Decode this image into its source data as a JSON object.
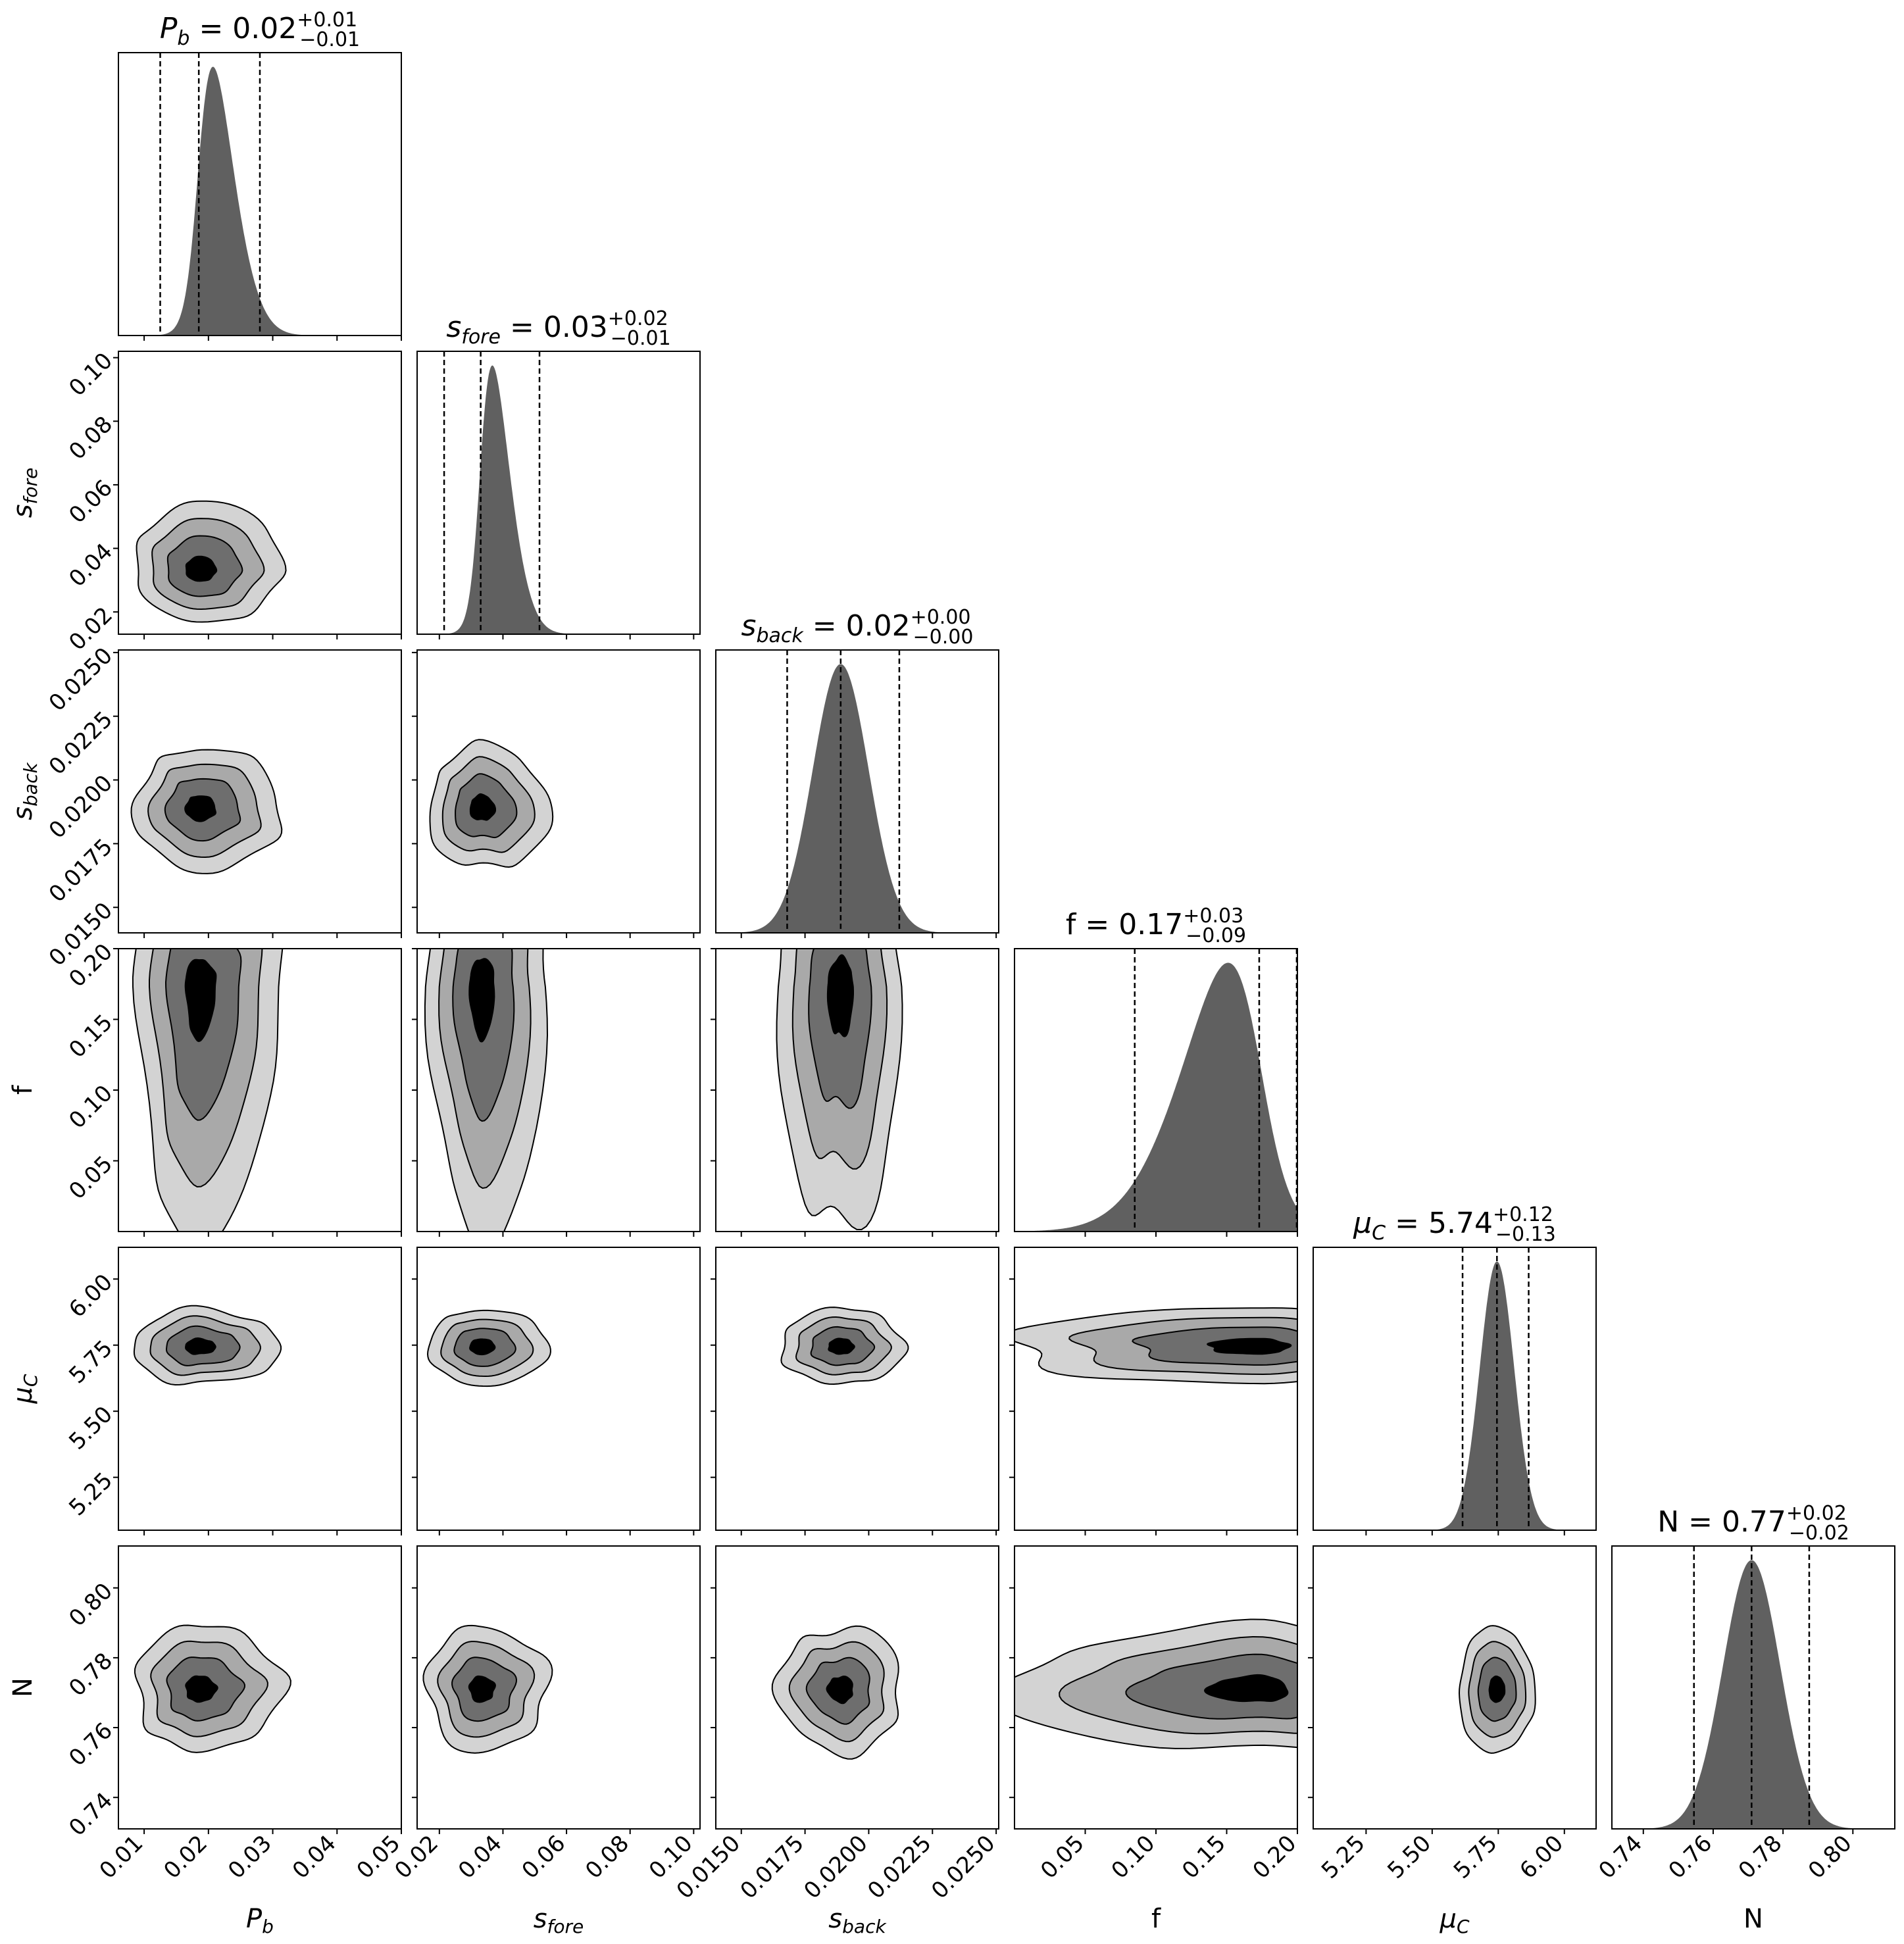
{
  "chart_data": {
    "type": "corner",
    "parameters": [
      {
        "key": "Pb",
        "sym": "P",
        "sub": "b",
        "label": "P_b",
        "range": [
          0.006,
          0.05
        ],
        "ticks": [
          0.01,
          0.02,
          0.03,
          0.04,
          0.05
        ],
        "tick_labels": [
          "0.01",
          "0.02",
          "0.03",
          "0.04",
          "0.05"
        ],
        "median": 0.0185,
        "q16": 0.0125,
        "q84": 0.028,
        "sigma": 0.0045,
        "skew": 3,
        "title_value": "0.02",
        "title_plus": "+0.01",
        "title_minus": "−0.01"
      },
      {
        "key": "sfore",
        "sym": "s",
        "sub": "fore",
        "label": "s_fore",
        "range": [
          0.013,
          0.102
        ],
        "ticks": [
          0.02,
          0.04,
          0.06,
          0.08,
          0.1
        ],
        "tick_labels": [
          "0.02",
          "0.04",
          "0.06",
          "0.08",
          "0.10"
        ],
        "median": 0.033,
        "q16": 0.0215,
        "q84": 0.0515,
        "sigma": 0.0075,
        "skew": 3,
        "title_value": "0.03",
        "title_plus": "+0.02",
        "title_minus": "−0.01"
      },
      {
        "key": "sback",
        "sym": "s",
        "sub": "back",
        "label": "s_back",
        "range": [
          0.014,
          0.0251
        ],
        "ticks": [
          0.015,
          0.0175,
          0.02,
          0.0225,
          0.025
        ],
        "tick_labels": [
          "0.0150",
          "0.0175",
          "0.0200",
          "0.0225",
          "0.0250"
        ],
        "median": 0.0189,
        "q16": 0.0168,
        "q84": 0.0212,
        "sigma": 0.0011,
        "skew": 0,
        "title_value": "0.02",
        "title_plus": "+0.00",
        "title_minus": "−0.00"
      },
      {
        "key": "f",
        "sym": "f",
        "sub": "",
        "label": "f",
        "range": [
          0.0,
          0.2
        ],
        "ticks": [
          0.05,
          0.1,
          0.15,
          0.2
        ],
        "tick_labels": [
          "0.05",
          "0.10",
          "0.15",
          "0.20"
        ],
        "median": 0.173,
        "q16": 0.085,
        "q84": 0.1995,
        "sigma": 0.045,
        "skew": -3,
        "title_value": "0.17",
        "title_plus": "+0.03",
        "title_minus": "−0.09"
      },
      {
        "key": "muC",
        "sym": "μ",
        "sub": "C",
        "label": "μ_C",
        "range": [
          5.05,
          6.12
        ],
        "ticks": [
          5.25,
          5.5,
          5.75,
          6.0
        ],
        "tick_labels": [
          "5.25",
          "5.50",
          "5.75",
          "6.00"
        ],
        "median": 5.745,
        "q16": 5.615,
        "q84": 5.865,
        "sigma": 0.065,
        "skew": 0,
        "title_value": "5.74",
        "title_plus": "+0.12",
        "title_minus": "−0.13"
      },
      {
        "key": "N",
        "sym": "N",
        "sub": "",
        "label": "N",
        "range": [
          0.731,
          0.812
        ],
        "ticks": [
          0.74,
          0.76,
          0.78,
          0.8
        ],
        "tick_labels": [
          "0.74",
          "0.76",
          "0.78",
          "0.80"
        ],
        "median": 0.771,
        "q16": 0.7545,
        "q84": 0.7875,
        "sigma": 0.0082,
        "skew": 0,
        "title_value": "0.77",
        "title_plus": "+0.02",
        "title_minus": "−0.02"
      }
    ],
    "contour_levels": 4,
    "contour_fill_colors": [
      "#d3d3d3",
      "#a9a9a9",
      "#6e6e6e",
      "#000000"
    ],
    "histogram_color": "#606060",
    "quantile_line_style": "dashed"
  }
}
